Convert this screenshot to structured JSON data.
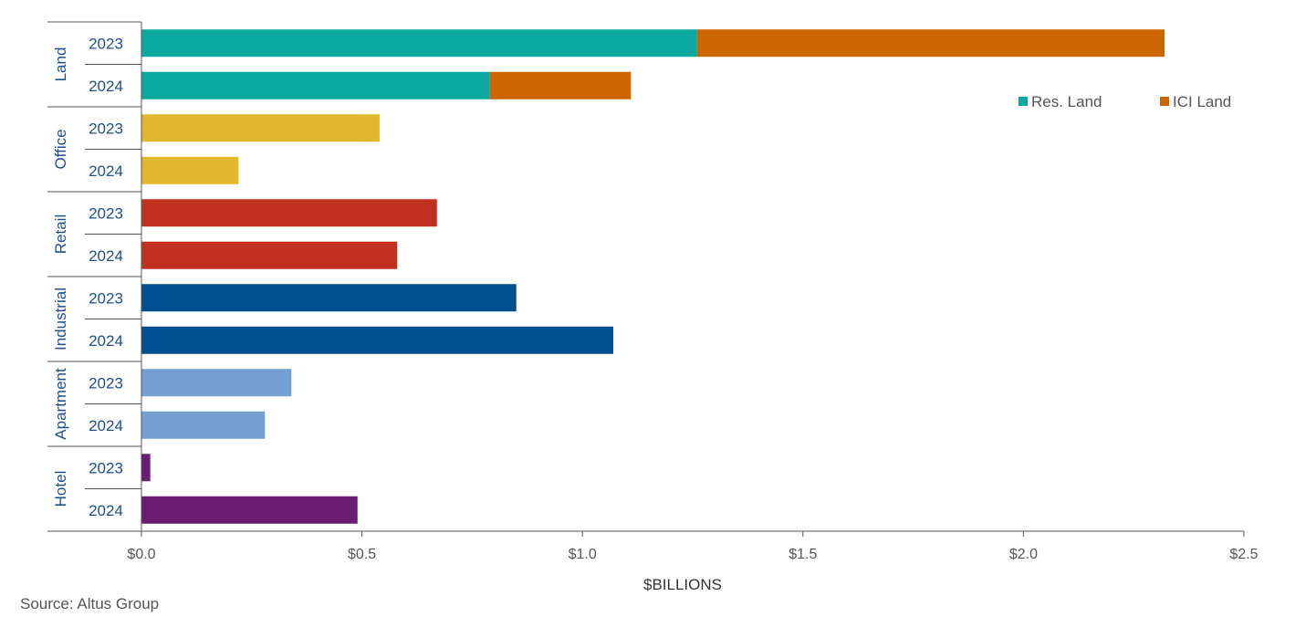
{
  "chart_data": {
    "type": "bar",
    "orientation": "horizontal",
    "stacked": true,
    "xlabel": "$BILLIONS",
    "xlim": [
      0,
      2.5
    ],
    "xticks": [
      "$0.0",
      "$0.5",
      "$1.0",
      "$1.5",
      "$2.0",
      "$2.5"
    ],
    "xtick_values": [
      0,
      0.5,
      1.0,
      1.5,
      2.0,
      2.5
    ],
    "grid": false,
    "legend_position": "top-right",
    "legend": [
      {
        "name": "Res. Land",
        "color": "#0aa89e"
      },
      {
        "name": "ICI Land",
        "color": "#cc6600"
      }
    ],
    "groups": [
      {
        "name": "Land",
        "color": "#0aa89e",
        "rows": [
          {
            "year": "2023",
            "segments": [
              {
                "series": "Res. Land",
                "value": 1.26,
                "color": "#0aa89e"
              },
              {
                "series": "ICI Land",
                "value": 1.06,
                "color": "#cc6600"
              }
            ]
          },
          {
            "year": "2024",
            "segments": [
              {
                "series": "Res. Land",
                "value": 0.79,
                "color": "#0aa89e"
              },
              {
                "series": "ICI Land",
                "value": 0.32,
                "color": "#cc6600"
              }
            ]
          }
        ]
      },
      {
        "name": "Office",
        "color": "#e0b82e",
        "rows": [
          {
            "year": "2023",
            "segments": [
              {
                "value": 0.54,
                "color": "#e0b82e"
              }
            ]
          },
          {
            "year": "2024",
            "segments": [
              {
                "value": 0.22,
                "color": "#e0b82e"
              }
            ]
          }
        ]
      },
      {
        "name": "Retail",
        "color": "#c0301e",
        "rows": [
          {
            "year": "2023",
            "segments": [
              {
                "value": 0.67,
                "color": "#c0301e"
              }
            ]
          },
          {
            "year": "2024",
            "segments": [
              {
                "value": 0.58,
                "color": "#c0301e"
              }
            ]
          }
        ]
      },
      {
        "name": "Industrial",
        "color": "#00508f",
        "rows": [
          {
            "year": "2023",
            "segments": [
              {
                "value": 0.85,
                "color": "#00508f"
              }
            ]
          },
          {
            "year": "2024",
            "segments": [
              {
                "value": 1.07,
                "color": "#00508f"
              }
            ]
          }
        ]
      },
      {
        "name": "Apartment",
        "color": "#739fd2",
        "rows": [
          {
            "year": "2023",
            "segments": [
              {
                "value": 0.34,
                "color": "#739fd2"
              }
            ]
          },
          {
            "year": "2024",
            "segments": [
              {
                "value": 0.28,
                "color": "#739fd2"
              }
            ]
          }
        ]
      },
      {
        "name": "Hotel",
        "color": "#6a1e73",
        "rows": [
          {
            "year": "2023",
            "segments": [
              {
                "value": 0.02,
                "color": "#6a1e73"
              }
            ]
          },
          {
            "year": "2024",
            "segments": [
              {
                "value": 0.49,
                "color": "#6a1e73"
              }
            ]
          }
        ]
      }
    ]
  },
  "source": "Source:  Altus Group"
}
